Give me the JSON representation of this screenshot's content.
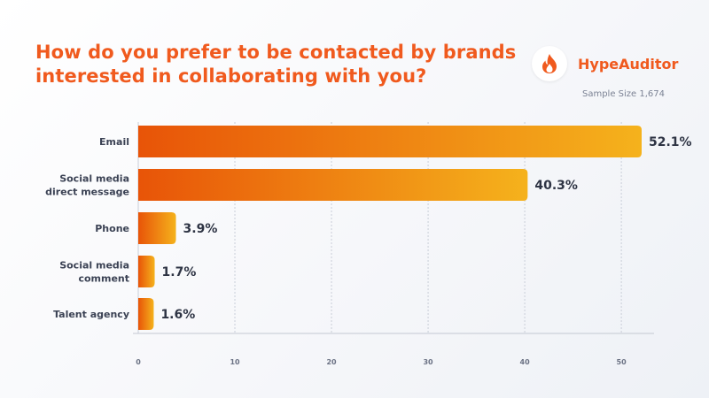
{
  "header": {
    "title": "How do you prefer to be contacted by brands interested in collaborating with you?",
    "brand_name": "HypeAuditor",
    "brand_icon": "flame-icon",
    "sample_size": "Sample Size 1,674"
  },
  "colors": {
    "title": "#f05a1e",
    "bar_start": "#e85408",
    "bar_end": "#f5b21c"
  },
  "chart_data": {
    "type": "bar",
    "orientation": "horizontal",
    "title": "How do you prefer to be contacted by brands interested in collaborating with you?",
    "categories": [
      [
        "Email"
      ],
      [
        "Social media",
        "direct message"
      ],
      [
        "Phone"
      ],
      [
        "Social media",
        "comment"
      ],
      [
        "Talent agency"
      ]
    ],
    "values": [
      52.1,
      40.3,
      3.9,
      1.7,
      1.6
    ],
    "value_labels": [
      "52.1%",
      "40.3%",
      "3.9%",
      "1.7%",
      "1.6%"
    ],
    "xlim": [
      0,
      52.1
    ],
    "xticks": [
      0,
      10,
      20,
      30,
      40,
      50
    ],
    "grid": true,
    "legend": "none"
  }
}
